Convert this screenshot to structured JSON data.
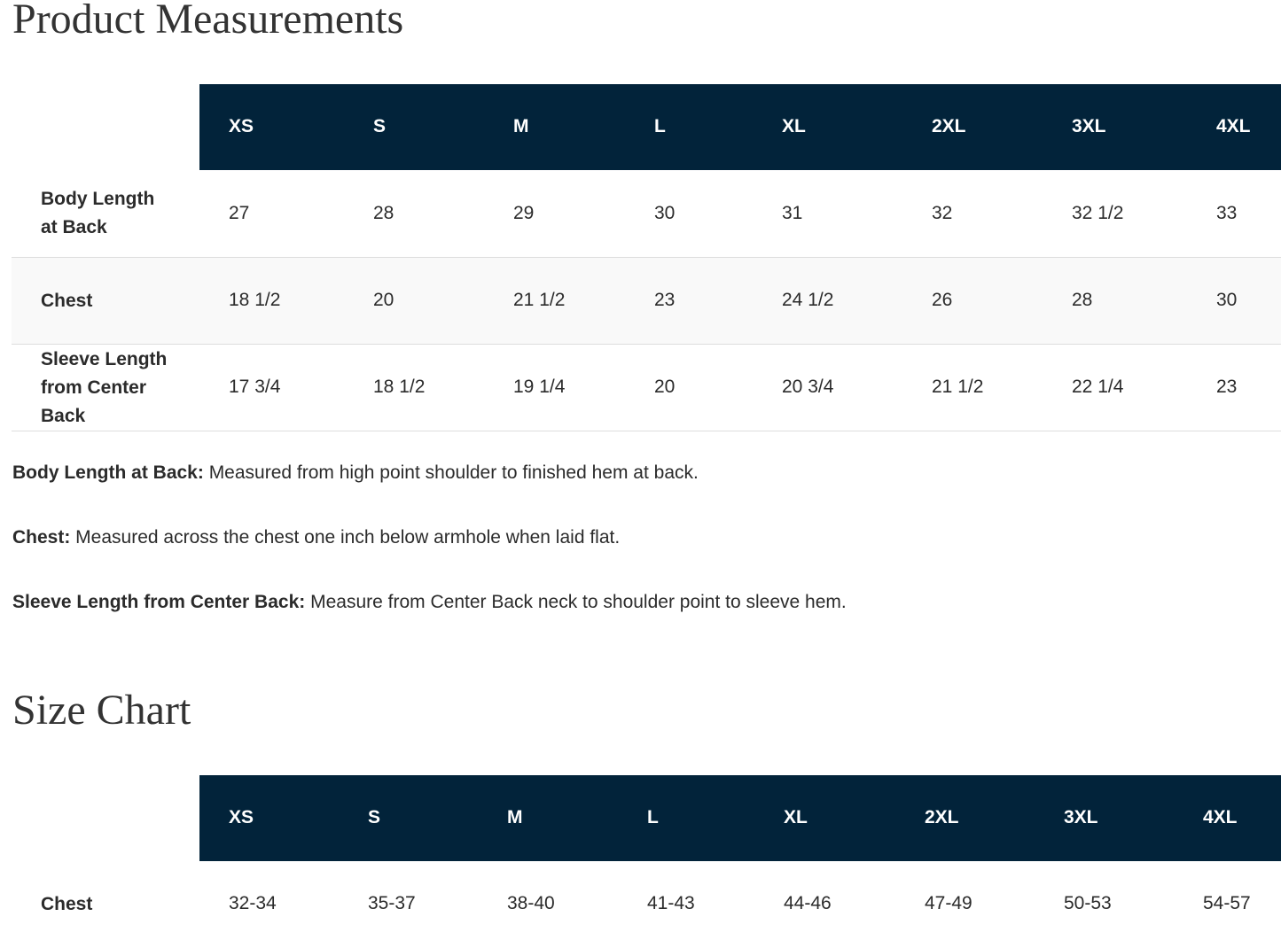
{
  "measurements": {
    "title": "Product Measurements",
    "columns": [
      "XS",
      "S",
      "M",
      "L",
      "XL",
      "2XL",
      "3XL",
      "4XL"
    ],
    "rows": [
      {
        "label": "Body Length at Back",
        "values": [
          "27",
          "28",
          "29",
          "30",
          "31",
          "32",
          "32 1/2",
          "33"
        ]
      },
      {
        "label": "Chest",
        "values": [
          "18 1/2",
          "20",
          "21 1/2",
          "23",
          "24 1/2",
          "26",
          "28",
          "30"
        ]
      },
      {
        "label": "Sleeve Length from Center Back",
        "values": [
          "17 3/4",
          "18 1/2",
          "19 1/4",
          "20",
          "20 3/4",
          "21 1/2",
          "22 1/4",
          "23"
        ]
      }
    ]
  },
  "notes": [
    {
      "term": "Body Length at Back:",
      "text": "Measured from high point shoulder to finished hem at back."
    },
    {
      "term": "Chest:",
      "text": "Measured across the chest one inch below armhole when laid flat."
    },
    {
      "term": "Sleeve Length from Center Back:",
      "text": "Measure from Center Back neck to shoulder point to sleeve hem."
    }
  ],
  "size_chart": {
    "title": "Size Chart",
    "columns": [
      "XS",
      "S",
      "M",
      "L",
      "XL",
      "2XL",
      "3XL",
      "4XL"
    ],
    "rows": [
      {
        "label": "Chest",
        "values": [
          "32-34",
          "35-37",
          "38-40",
          "41-43",
          "44-46",
          "47-49",
          "50-53",
          "54-57"
        ]
      }
    ]
  }
}
